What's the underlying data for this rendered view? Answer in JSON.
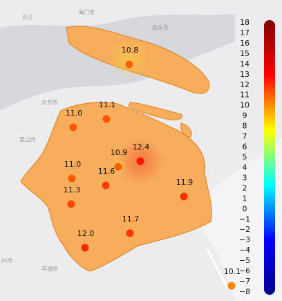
{
  "map": {
    "place_labels": [
      "海门市",
      "启东市",
      "长江",
      "太仓市",
      "昆山市",
      "平湖市",
      "兴市"
    ],
    "stations": [
      {
        "label": "10.8",
        "value": 10.8
      },
      {
        "label": "11.0",
        "value": 11.0
      },
      {
        "label": "11.1",
        "value": 11.1
      },
      {
        "label": "10.9",
        "value": 10.9
      },
      {
        "label": "12.4",
        "value": 12.4
      },
      {
        "label": "11.6",
        "value": 11.6
      },
      {
        "label": "11.0",
        "value": 11.0
      },
      {
        "label": "11.3",
        "value": 11.3
      },
      {
        "label": "11.9",
        "value": 11.9
      },
      {
        "label": "11.7",
        "value": 11.7
      },
      {
        "label": "12.0",
        "value": 12.0
      },
      {
        "label": "10.1",
        "value": 10.1
      }
    ],
    "colorbar": {
      "range": [
        -8,
        18
      ],
      "colors": [
        "#00008f",
        "#0000ff",
        "#00ffff",
        "#ffff00",
        "#ff0000",
        "#800000"
      ],
      "ticks": [
        18,
        17,
        16,
        15,
        14,
        13,
        12,
        11,
        10,
        9,
        8,
        7,
        6,
        5,
        4,
        3,
        2,
        1,
        0,
        {
          "value": -1,
          "label": "−1"
        },
        {
          "value": -2,
          "label": "−2"
        },
        {
          "value": -3,
          "label": "−3"
        },
        {
          "value": -4,
          "label": "−4"
        },
        {
          "value": -5,
          "label": "−5"
        },
        {
          "value": -6,
          "label": "−6"
        },
        {
          "value": -7,
          "label": "−7"
        },
        {
          "value": -8,
          "label": "−8"
        }
      ]
    }
  }
}
